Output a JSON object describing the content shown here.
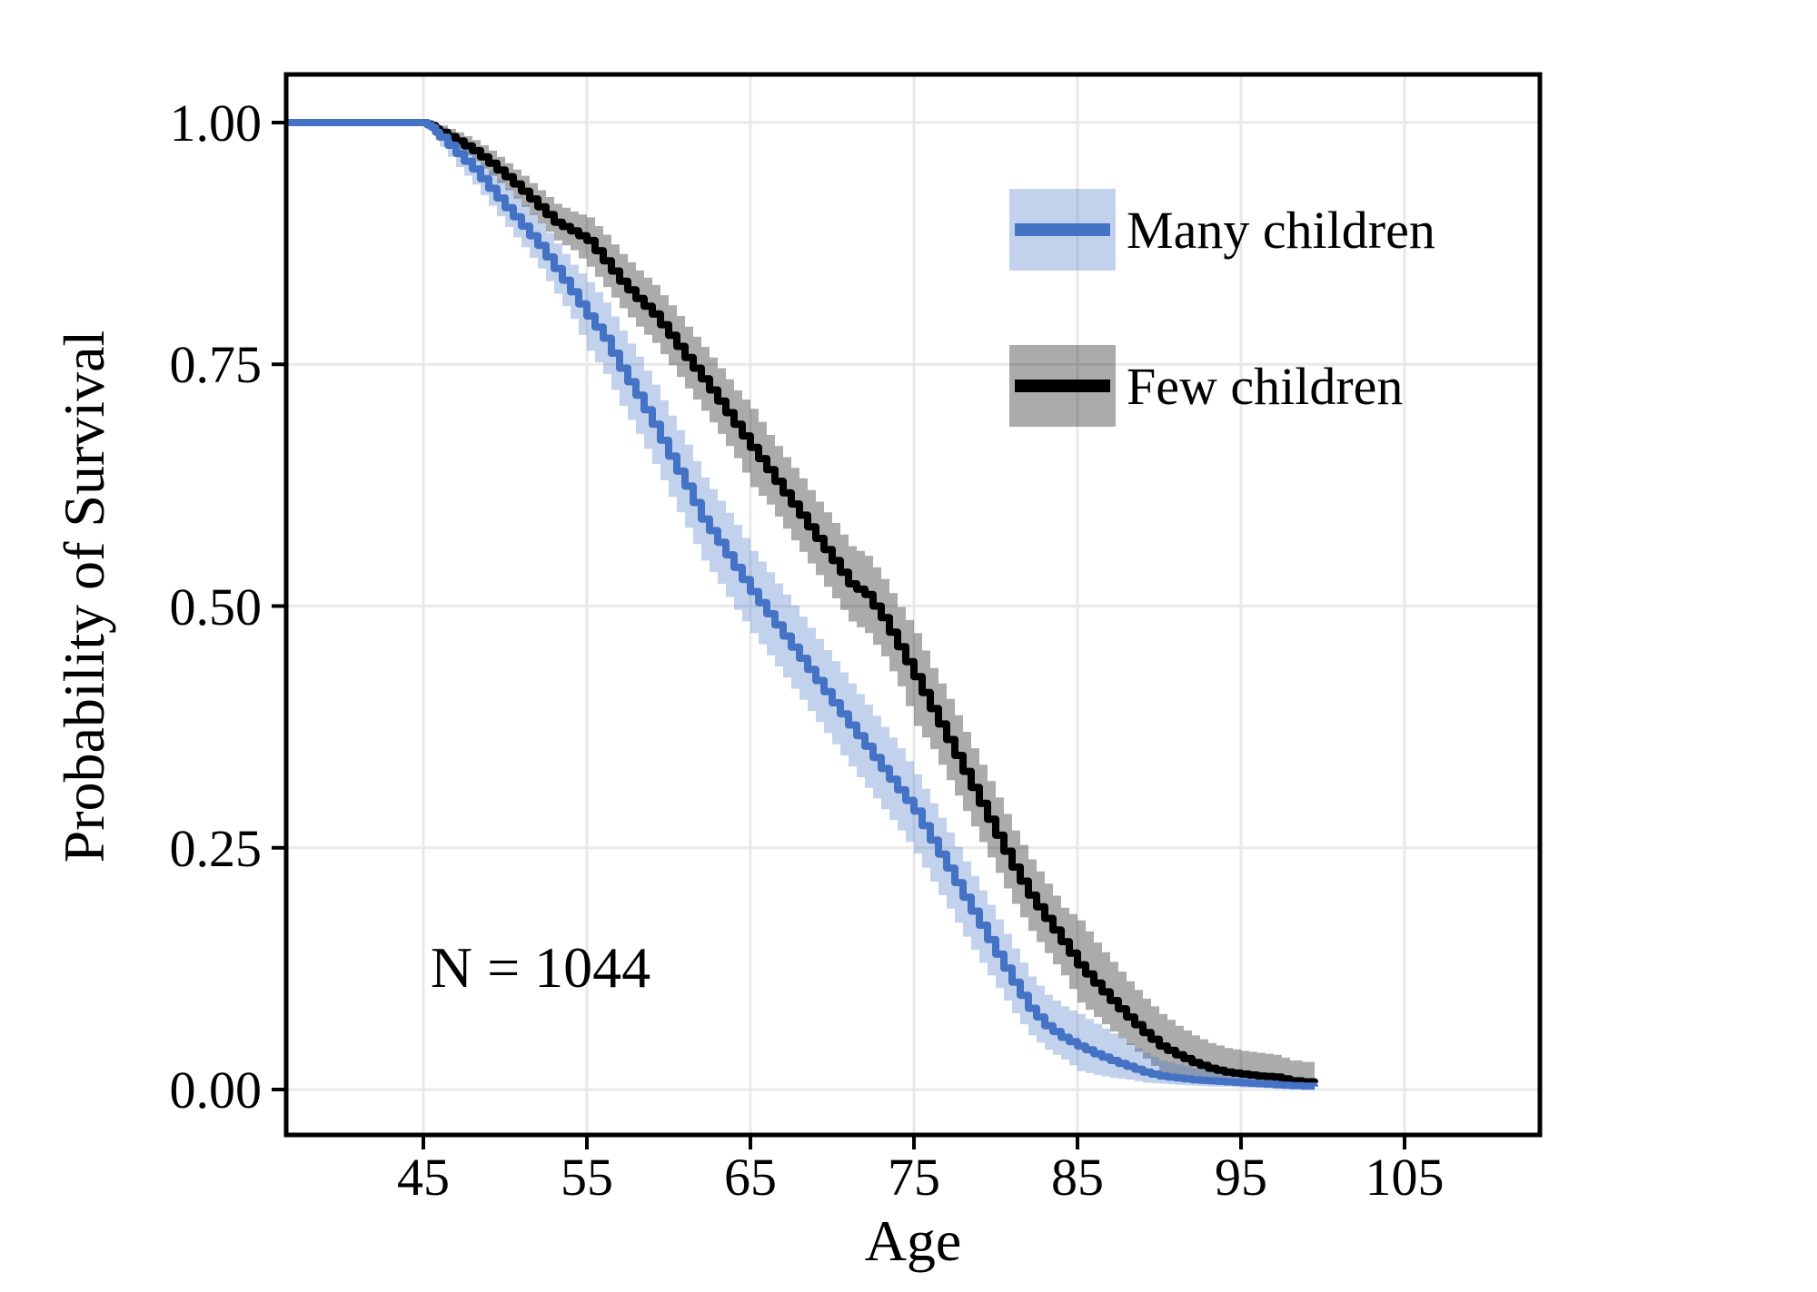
{
  "chart_data": {
    "type": "line",
    "subtype": "kaplan-meier-step-with-confidence-bands",
    "title": "",
    "xlabel": "Age",
    "ylabel": "Probability of Survival",
    "annotation": "N = 1044",
    "xlim": [
      36.6,
      113.3
    ],
    "ylim": [
      -0.05,
      1.05
    ],
    "x_ticks": [
      45,
      55,
      65,
      75,
      85,
      95,
      105
    ],
    "x_tick_labels": [
      "45",
      "55",
      "65",
      "75",
      "85",
      "95",
      "105"
    ],
    "y_ticks": [
      1.0,
      0.75,
      0.5,
      0.25,
      0.0
    ],
    "y_tick_labels": [
      "1.00",
      "0.75",
      "0.50",
      "0.25",
      "0.00"
    ],
    "grid": true,
    "grid_color": "#e9e9e9",
    "legend_position": "upper-right-inside",
    "series": [
      {
        "name": "Many children",
        "color": "#4472c4",
        "band_color": "rgba(68,114,196,0.32)",
        "points_format": [
          "age",
          "survival",
          "ci_low",
          "ci_high"
        ],
        "points": [
          [
            36.6,
            1.0,
            1.0,
            1.0
          ],
          [
            45,
            1.0,
            1.0,
            1.0
          ],
          [
            45.5,
            0.995,
            0.988,
            1.0
          ],
          [
            46,
            0.985,
            0.975,
            0.995
          ],
          [
            47,
            0.968,
            0.954,
            0.982
          ],
          [
            48,
            0.952,
            0.936,
            0.968
          ],
          [
            49,
            0.932,
            0.914,
            0.95
          ],
          [
            50,
            0.912,
            0.892,
            0.932
          ],
          [
            51,
            0.893,
            0.871,
            0.915
          ],
          [
            52,
            0.873,
            0.849,
            0.897
          ],
          [
            53,
            0.849,
            0.823,
            0.875
          ],
          [
            54,
            0.825,
            0.797,
            0.853
          ],
          [
            55,
            0.8,
            0.764,
            0.835
          ],
          [
            56,
            0.777,
            0.74,
            0.814
          ],
          [
            57,
            0.746,
            0.707,
            0.785
          ],
          [
            58,
            0.718,
            0.678,
            0.758
          ],
          [
            59,
            0.688,
            0.647,
            0.729
          ],
          [
            60,
            0.655,
            0.613,
            0.697
          ],
          [
            61,
            0.624,
            0.581,
            0.667
          ],
          [
            62,
            0.59,
            0.547,
            0.633
          ],
          [
            63,
            0.566,
            0.523,
            0.609
          ],
          [
            64,
            0.54,
            0.496,
            0.584
          ],
          [
            65,
            0.515,
            0.472,
            0.557
          ],
          [
            66,
            0.492,
            0.449,
            0.535
          ],
          [
            67,
            0.469,
            0.426,
            0.512
          ],
          [
            68,
            0.446,
            0.403,
            0.489
          ],
          [
            69,
            0.423,
            0.38,
            0.466
          ],
          [
            70,
            0.4,
            0.357,
            0.443
          ],
          [
            71,
            0.377,
            0.334,
            0.42
          ],
          [
            72,
            0.355,
            0.312,
            0.398
          ],
          [
            73,
            0.332,
            0.29,
            0.375
          ],
          [
            74,
            0.31,
            0.268,
            0.353
          ],
          [
            75,
            0.288,
            0.244,
            0.326
          ],
          [
            76,
            0.258,
            0.215,
            0.296
          ],
          [
            77,
            0.229,
            0.187,
            0.266
          ],
          [
            78,
            0.199,
            0.158,
            0.236
          ],
          [
            79,
            0.17,
            0.131,
            0.206
          ],
          [
            80,
            0.14,
            0.105,
            0.176
          ],
          [
            81,
            0.111,
            0.079,
            0.146
          ],
          [
            82,
            0.084,
            0.056,
            0.117
          ],
          [
            83,
            0.066,
            0.041,
            0.098
          ],
          [
            84,
            0.054,
            0.031,
            0.086
          ],
          [
            85,
            0.045,
            0.019,
            0.078
          ],
          [
            86,
            0.037,
            0.015,
            0.068
          ],
          [
            87,
            0.03,
            0.012,
            0.058
          ],
          [
            88,
            0.024,
            0.01,
            0.048
          ],
          [
            89,
            0.018,
            0.007,
            0.038
          ],
          [
            90,
            0.014,
            0.006,
            0.03
          ],
          [
            91,
            0.012,
            0.005,
            0.026
          ],
          [
            92,
            0.01,
            0.004,
            0.022
          ],
          [
            93,
            0.009,
            0.003,
            0.019
          ],
          [
            94,
            0.008,
            0.003,
            0.017
          ],
          [
            95,
            0.007,
            0.002,
            0.015
          ],
          [
            96,
            0.006,
            0.002,
            0.014
          ],
          [
            97,
            0.005,
            0.002,
            0.013
          ],
          [
            98,
            0.004,
            0.001,
            0.012
          ],
          [
            99.5,
            0.003,
            0.001,
            0.011
          ]
        ]
      },
      {
        "name": "Few children",
        "color": "#000000",
        "band_color": "rgba(0,0,0,0.33)",
        "points_format": [
          "age",
          "survival",
          "ci_low",
          "ci_high"
        ],
        "points": [
          [
            36.6,
            1.0,
            1.0,
            1.0
          ],
          [
            45,
            1.0,
            1.0,
            1.0
          ],
          [
            45.5,
            0.997,
            0.993,
            1.0
          ],
          [
            46,
            0.99,
            0.983,
            0.997
          ],
          [
            47,
            0.981,
            0.972,
            0.99
          ],
          [
            48,
            0.971,
            0.96,
            0.982
          ],
          [
            49,
            0.958,
            0.945,
            0.971
          ],
          [
            50,
            0.944,
            0.93,
            0.958
          ],
          [
            51,
            0.929,
            0.913,
            0.945
          ],
          [
            52,
            0.913,
            0.896,
            0.93
          ],
          [
            53,
            0.897,
            0.878,
            0.916
          ],
          [
            54,
            0.888,
            0.868,
            0.908
          ],
          [
            55,
            0.878,
            0.851,
            0.902
          ],
          [
            56,
            0.857,
            0.83,
            0.884
          ],
          [
            57,
            0.836,
            0.808,
            0.864
          ],
          [
            58,
            0.818,
            0.789,
            0.847
          ],
          [
            59,
            0.802,
            0.772,
            0.832
          ],
          [
            60,
            0.78,
            0.749,
            0.811
          ],
          [
            61,
            0.757,
            0.725,
            0.789
          ],
          [
            62,
            0.735,
            0.702,
            0.768
          ],
          [
            63,
            0.712,
            0.678,
            0.746
          ],
          [
            64,
            0.688,
            0.653,
            0.723
          ],
          [
            65,
            0.664,
            0.623,
            0.704
          ],
          [
            66,
            0.641,
            0.605,
            0.677
          ],
          [
            67,
            0.617,
            0.58,
            0.654
          ],
          [
            68,
            0.594,
            0.556,
            0.632
          ],
          [
            69,
            0.57,
            0.532,
            0.608
          ],
          [
            70,
            0.547,
            0.508,
            0.586
          ],
          [
            71,
            0.523,
            0.484,
            0.562
          ],
          [
            72,
            0.512,
            0.472,
            0.552
          ],
          [
            73,
            0.488,
            0.448,
            0.528
          ],
          [
            74,
            0.458,
            0.417,
            0.499
          ],
          [
            75,
            0.427,
            0.376,
            0.472
          ],
          [
            76,
            0.394,
            0.352,
            0.436
          ],
          [
            77,
            0.362,
            0.32,
            0.404
          ],
          [
            78,
            0.329,
            0.288,
            0.37
          ],
          [
            79,
            0.296,
            0.256,
            0.336
          ],
          [
            80,
            0.263,
            0.224,
            0.302
          ],
          [
            81,
            0.23,
            0.192,
            0.268
          ],
          [
            82,
            0.201,
            0.164,
            0.238
          ],
          [
            83,
            0.177,
            0.141,
            0.213
          ],
          [
            84,
            0.153,
            0.118,
            0.188
          ],
          [
            85,
            0.129,
            0.09,
            0.175
          ],
          [
            86,
            0.11,
            0.075,
            0.152
          ],
          [
            87,
            0.092,
            0.06,
            0.132
          ],
          [
            88,
            0.075,
            0.046,
            0.112
          ],
          [
            89,
            0.059,
            0.032,
            0.094
          ],
          [
            90,
            0.045,
            0.017,
            0.078
          ],
          [
            91,
            0.036,
            0.013,
            0.066
          ],
          [
            92,
            0.028,
            0.01,
            0.056
          ],
          [
            93,
            0.022,
            0.007,
            0.048
          ],
          [
            94,
            0.018,
            0.005,
            0.043
          ],
          [
            95,
            0.016,
            0.004,
            0.04
          ],
          [
            96,
            0.014,
            0.004,
            0.038
          ],
          [
            97,
            0.013,
            0.003,
            0.036
          ],
          [
            98,
            0.009,
            0.002,
            0.03
          ],
          [
            99.5,
            0.007,
            0.002,
            0.027
          ]
        ]
      }
    ]
  }
}
